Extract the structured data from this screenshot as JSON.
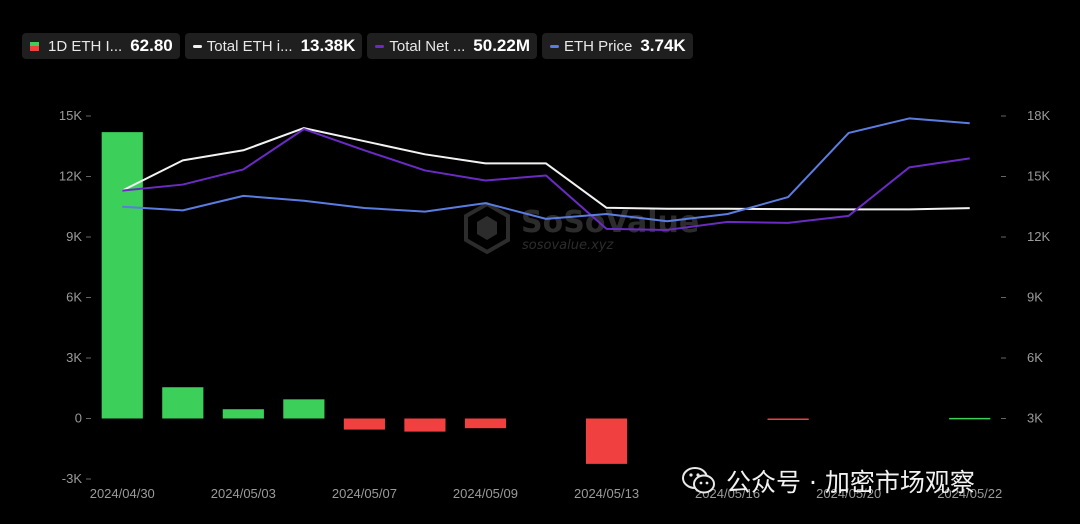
{
  "legend": [
    {
      "name": "1D ETH I...",
      "value": "62.80",
      "swatch": "bar",
      "colors": [
        "#3ccf5a",
        "#f04040"
      ]
    },
    {
      "name": "Total ETH i...",
      "value": "13.38K",
      "swatch": "line",
      "colors": [
        "#f2f2f2"
      ]
    },
    {
      "name": "Total Net ...",
      "value": "50.22M",
      "swatch": "line",
      "colors": [
        "#6a2bc4"
      ]
    },
    {
      "name": "ETH Price",
      "value": "3.74K",
      "swatch": "line",
      "colors": [
        "#5b7ce0"
      ]
    }
  ],
  "watermark": {
    "brand": "SoSoValue",
    "url": "sosovalue.xyz"
  },
  "wechat": {
    "text": "公众号 · 加密市场观察",
    "icon": "wechat-icon"
  },
  "chart_data": {
    "type": "bar+line",
    "x_tick_labels": [
      "2024/04/30",
      "2024/05/03",
      "2024/05/07",
      "2024/05/09",
      "2024/05/13",
      "2024/05/16",
      "2024/05/20",
      "2024/05/22"
    ],
    "left_axis": {
      "ticks": [
        "15K",
        "12K",
        "9K",
        "6K",
        "3K",
        "0",
        "-3K"
      ],
      "range": [
        -3000,
        15000
      ]
    },
    "right_axis": {
      "ticks": [
        "18K",
        "15K",
        "12K",
        "9K",
        "6K",
        "3K"
      ],
      "range": [
        3000,
        18000
      ]
    },
    "grid": false,
    "bar_series": {
      "positive_color": "#3ccf5a",
      "negative_color": "#f04040",
      "values": [
        14200,
        1550,
        460,
        950,
        -550,
        -650,
        -480,
        null,
        -2250,
        null,
        null,
        -30,
        null,
        null,
        30
      ]
    },
    "line_series": [
      {
        "color": "#f2f2f2",
        "axis": "left",
        "values": [
          11300,
          12800,
          13300,
          14400,
          13750,
          13100,
          12650,
          12650,
          10450,
          10400,
          10400,
          10380,
          10370,
          10370,
          10430
        ]
      },
      {
        "color": "#6a2bc4",
        "axis": "left",
        "values": [
          11300,
          11600,
          12350,
          14350,
          13300,
          12300,
          11800,
          12050,
          9400,
          9350,
          9750,
          9700,
          10050,
          12450,
          12900
        ]
      },
      {
        "color": "#5b7ce0",
        "axis": "right",
        "values": [
          14250,
          14100,
          14700,
          14500,
          14200,
          14050,
          14400,
          13750,
          13950,
          13650,
          13950,
          14650,
          17300,
          17900,
          17700
        ]
      }
    ]
  }
}
